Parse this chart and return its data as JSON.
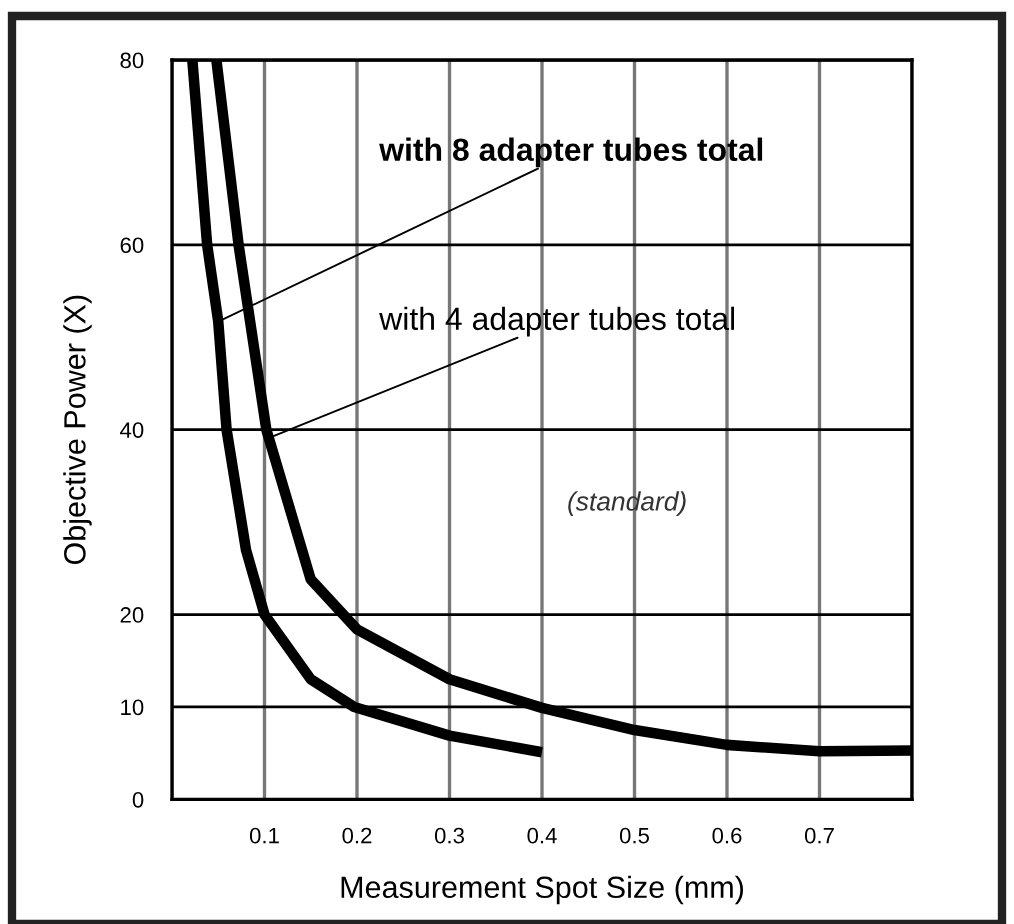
{
  "chart_data": {
    "type": "line",
    "xlabel": "Measurement Spot Size (mm)",
    "ylabel": "Objective Power (X)",
    "series": [
      {
        "color": "#000000",
        "x": [
          0.022,
          0.038,
          0.05,
          0.059,
          0.08,
          0.1,
          0.15,
          0.197,
          0.3,
          0.4
        ],
        "values": [
          80,
          60,
          51.7,
          40,
          27,
          20,
          13,
          10,
          6.9,
          5.1
        ]
      },
      {
        "color": "#000000",
        "x": [
          0.048,
          0.072,
          0.102,
          0.15,
          0.2,
          0.3,
          0.4,
          0.5,
          0.6,
          0.7,
          0.8
        ],
        "values": [
          80,
          60,
          40,
          23.8,
          18.4,
          13,
          9.9,
          7.5,
          5.9,
          5.2,
          5.3
        ]
      }
    ],
    "annotations": [
      {
        "text": "with 8 adapter tubes total",
        "x": 0.05,
        "y": 51.7
      },
      {
        "text": "with 4 adapter tubes total",
        "x": 0.107,
        "y": 39.2
      },
      "(standard)"
    ],
    "xlim": [
      0,
      0.8
    ],
    "ylim": [
      0,
      80
    ],
    "xticks": [
      {
        "value": 0,
        "label": null
      },
      0.1,
      0.2,
      0.3,
      0.4,
      0.5,
      0.6,
      0.7,
      {
        "value": 0.8,
        "label": null
      }
    ],
    "yticks": [
      0,
      10,
      20,
      40,
      60,
      80
    ],
    "grid": true,
    "marker": "none",
    "line_style": "solid"
  }
}
